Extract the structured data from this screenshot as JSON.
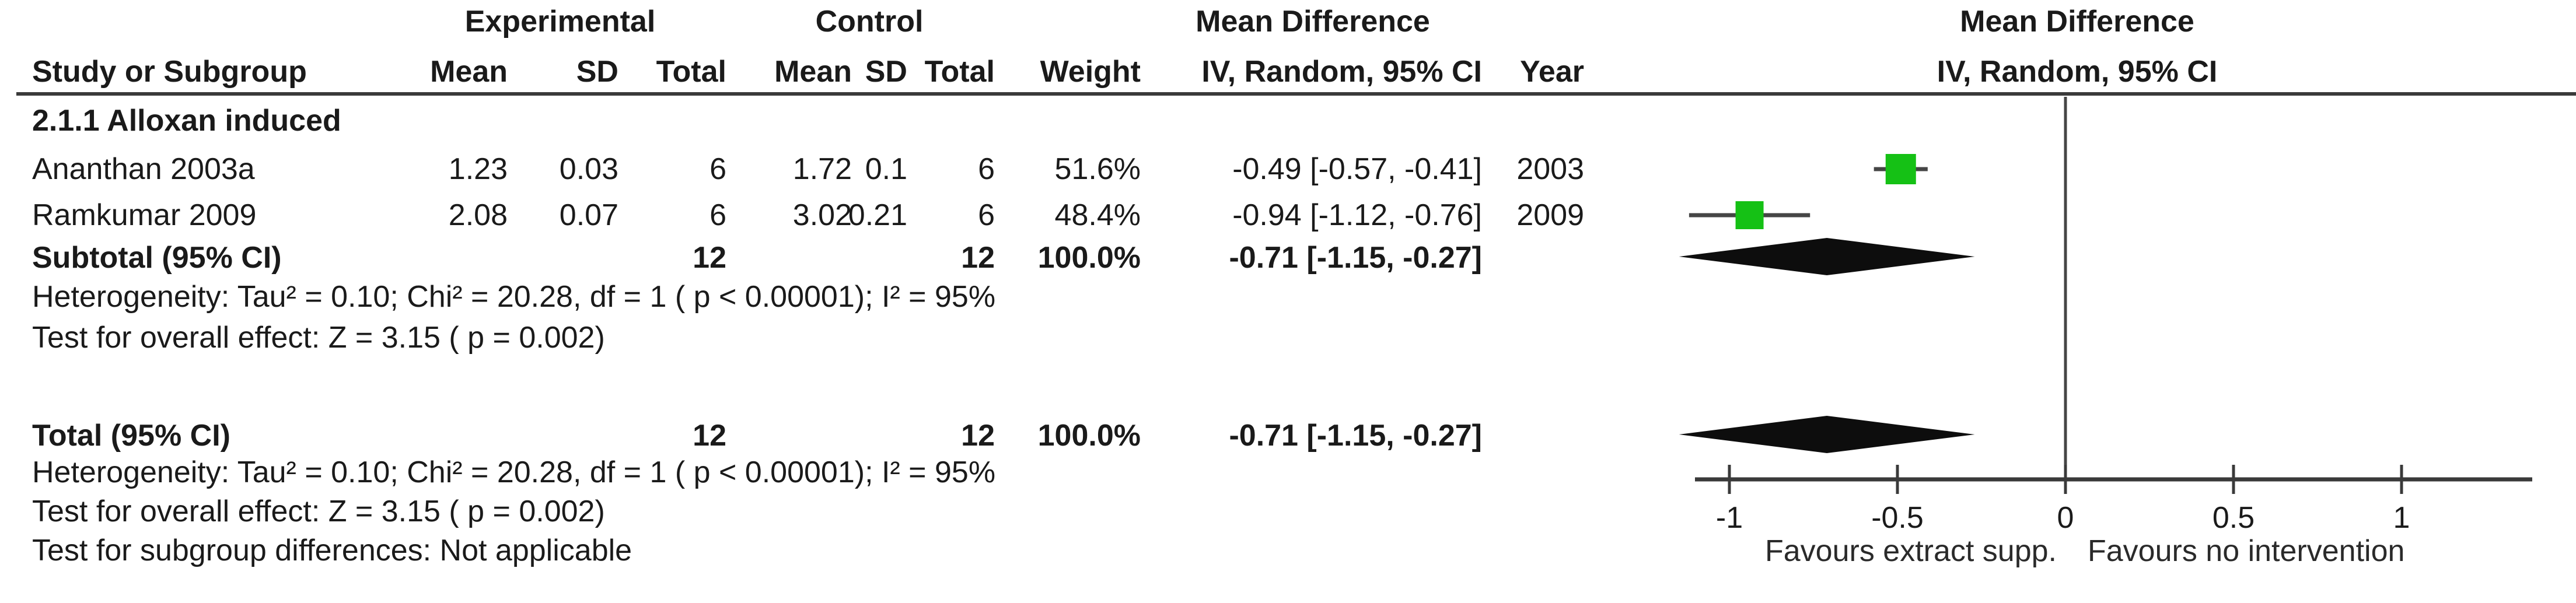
{
  "header": {
    "group_experimental": "Experimental",
    "group_control": "Control",
    "group_md_left": "Mean Difference",
    "group_md_right": "Mean Difference",
    "col_study": "Study or Subgroup",
    "col_mean_e": "Mean",
    "col_sd_e": "SD",
    "col_total_e": "Total",
    "col_mean_c": "Mean",
    "col_sd_c": "SD",
    "col_total_c": "Total",
    "col_weight": "Weight",
    "col_ci_left": "IV, Random, 95% CI",
    "col_year": "Year",
    "col_ci_right": "IV, Random, 95% CI"
  },
  "table": {
    "subgroup_label": "2.1.1 Alloxan induced",
    "rows": [
      {
        "study": "Ananthan 2003a",
        "mean_e": "1.23",
        "sd_e": "0.03",
        "total_e": "6",
        "mean_c": "1.72",
        "sd_c": "0.1",
        "total_c": "6",
        "weight": "51.6%",
        "ci": "-0.49 [-0.57, -0.41]",
        "year": "2003"
      },
      {
        "study": "Ramkumar 2009",
        "mean_e": "2.08",
        "sd_e": "0.07",
        "total_e": "6",
        "mean_c": "3.02",
        "sd_c": "0.21",
        "total_c": "6",
        "weight": "48.4%",
        "ci": "-0.94 [-1.12, -0.76]",
        "year": "2009"
      }
    ],
    "subtotal": {
      "label": "Subtotal (95% CI)",
      "total_e": "12",
      "total_c": "12",
      "weight": "100.0%",
      "ci": "-0.71 [-1.15, -0.27]"
    },
    "subgroup_heterogeneity": "Heterogeneity: Tau² = 0.10; Chi² = 20.28, df = 1 ( p < 0.00001); I² = 95%",
    "subgroup_effect_test": "Test for overall effect: Z = 3.15 ( p = 0.002)",
    "total": {
      "label": "Total (95% CI)",
      "total_e": "12",
      "total_c": "12",
      "weight": "100.0%",
      "ci": "-0.71 [-1.15, -0.27]"
    },
    "total_heterogeneity": "Heterogeneity: Tau² = 0.10; Chi² = 20.28, df = 1 ( p < 0.00001); I² = 95%",
    "total_effect_test": "Test for overall effect: Z = 3.15 ( p = 0.002)",
    "subgroup_difference_test": "Test for subgroup differences: Not applicable"
  },
  "chart_data": {
    "type": "forest",
    "effect_measure": "Mean Difference, IV, Random, 95% CI",
    "x_ticks": [
      -1,
      -0.5,
      0,
      0.5,
      1
    ],
    "xlim": [
      -1.2,
      1.35
    ],
    "axis_label_left": "Favours extract supp.",
    "axis_label_right": "Favours no intervention",
    "marker_color": "#15C115",
    "line_color": "#454545",
    "diamond_color": "#0d0d0d",
    "studies": [
      {
        "name": "Ananthan 2003a",
        "md": -0.49,
        "ci_low": -0.57,
        "ci_high": -0.41,
        "weight": 51.6,
        "year": 2003
      },
      {
        "name": "Ramkumar 2009",
        "md": -0.94,
        "ci_low": -1.12,
        "ci_high": -0.76,
        "weight": 48.4,
        "year": 2009
      }
    ],
    "subtotal": {
      "md": -0.71,
      "ci_low": -1.15,
      "ci_high": -0.27
    },
    "total": {
      "md": -0.71,
      "ci_low": -1.15,
      "ci_high": -0.27
    }
  }
}
